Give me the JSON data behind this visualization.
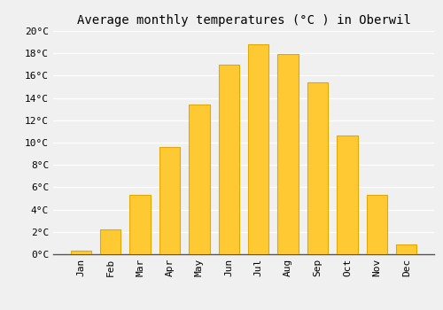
{
  "title": "Average monthly temperatures (°C ) in Oberwil",
  "months": [
    "Jan",
    "Feb",
    "Mar",
    "Apr",
    "May",
    "Jun",
    "Jul",
    "Aug",
    "Sep",
    "Oct",
    "Nov",
    "Dec"
  ],
  "values": [
    0.3,
    2.2,
    5.3,
    9.6,
    13.4,
    17.0,
    18.8,
    17.9,
    15.4,
    10.6,
    5.3,
    0.9
  ],
  "bar_color": "#FFC933",
  "bar_edge_color": "#E0A800",
  "ylim": [
    0,
    20
  ],
  "yticks": [
    0,
    2,
    4,
    6,
    8,
    10,
    12,
    14,
    16,
    18,
    20
  ],
  "ytick_labels": [
    "0°C",
    "2°C",
    "4°C",
    "6°C",
    "8°C",
    "10°C",
    "12°C",
    "14°C",
    "16°C",
    "18°C",
    "20°C"
  ],
  "background_color": "#f0f0f0",
  "grid_color": "#ffffff",
  "title_fontsize": 10,
  "tick_fontsize": 8,
  "bar_width": 0.7
}
